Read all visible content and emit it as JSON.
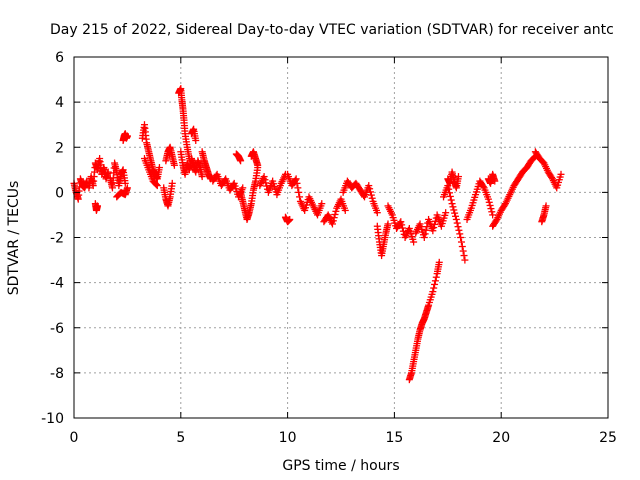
{
  "chart_data": {
    "type": "scatter",
    "title": "Day 215 of 2022, Sidereal Day-to-day VTEC variation (SDTVAR) for receiver antc",
    "xlabel": "GPS time / hours",
    "ylabel": "SDTVAR / TECUs",
    "xlim": [
      0,
      25
    ],
    "ylim": [
      -10,
      6
    ],
    "x_ticks": [
      0,
      5,
      10,
      15,
      20,
      25
    ],
    "y_ticks": [
      -10,
      -8,
      -6,
      -4,
      -2,
      0,
      2,
      4,
      6
    ],
    "x_tick_labels": [
      "0",
      "5",
      "10",
      "15",
      "20",
      "25"
    ],
    "y_tick_labels": [
      "-10",
      "-8",
      "-6",
      "-4",
      "-2",
      "0",
      "2",
      "4",
      "6"
    ],
    "grid": true,
    "marker": "plus",
    "marker_color": "#ff0000",
    "series": [
      {
        "name": "SDTVAR",
        "segments": [
          {
            "x": [
              0.0,
              0.1,
              0.2,
              0.3,
              0.4,
              0.5,
              0.6
            ],
            "y": [
              0.4,
              0.0,
              -0.3,
              0.6,
              0.3,
              0.2,
              0.5
            ]
          },
          {
            "x": [
              0.7,
              0.8,
              0.9,
              1.0,
              1.1,
              1.2,
              1.3,
              1.4,
              1.5,
              1.6
            ],
            "y": [
              0.2,
              0.7,
              0.3,
              1.3,
              1.0,
              1.5,
              0.8,
              1.1,
              0.6,
              0.9
            ]
          },
          {
            "x": [
              1.0,
              1.05,
              1.1
            ],
            "y": [
              -0.5,
              -0.8,
              -0.6
            ]
          },
          {
            "x": [
              1.7,
              1.8,
              1.9,
              2.0,
              2.1,
              2.2,
              2.3,
              2.4
            ],
            "y": [
              0.6,
              0.2,
              1.3,
              0.9,
              0.3,
              0.8,
              1.0,
              0.4
            ]
          },
          {
            "x": [
              2.3,
              2.35,
              2.4,
              2.45,
              2.5
            ],
            "y": [
              2.3,
              2.5,
              2.6,
              2.4,
              2.5
            ]
          },
          {
            "x": [
              2.0,
              2.2,
              2.4,
              2.5
            ],
            "y": [
              -0.2,
              0.0,
              -0.1,
              0.2
            ]
          },
          {
            "x": [
              3.2,
              3.3,
              3.4,
              3.5,
              3.6,
              3.7,
              3.8,
              3.9,
              4.0
            ],
            "y": [
              2.4,
              3.0,
              2.2,
              1.8,
              1.4,
              1.0,
              0.8,
              0.6,
              1.1
            ]
          },
          {
            "x": [
              3.3,
              3.5,
              3.7,
              3.9
            ],
            "y": [
              1.5,
              1.0,
              0.5,
              0.3
            ]
          },
          {
            "x": [
              4.2,
              4.3,
              4.4,
              4.5,
              4.6
            ],
            "y": [
              0.2,
              -0.3,
              -0.6,
              -0.2,
              0.4
            ]
          },
          {
            "x": [
              4.3,
              4.4,
              4.5,
              4.6,
              4.7
            ],
            "y": [
              1.4,
              1.8,
              2.0,
              1.6,
              1.2
            ]
          },
          {
            "x": [
              4.9,
              5.0,
              5.05,
              5.1,
              5.15,
              5.2,
              5.3,
              5.4
            ],
            "y": [
              4.4,
              4.6,
              4.1,
              3.7,
              3.2,
              2.6,
              2.0,
              1.5
            ]
          },
          {
            "x": [
              5.0,
              5.1,
              5.2,
              5.3,
              5.4,
              5.5,
              5.6,
              5.7,
              5.8,
              5.9,
              6.0
            ],
            "y": [
              1.8,
              1.2,
              0.8,
              1.3,
              1.0,
              1.5,
              1.2,
              0.9,
              1.4,
              1.1,
              0.7
            ]
          },
          {
            "x": [
              5.5,
              5.6,
              5.7
            ],
            "y": [
              2.6,
              2.8,
              2.3
            ]
          },
          {
            "x": [
              6.0,
              6.1,
              6.2,
              6.3,
              6.4
            ],
            "y": [
              1.8,
              1.4,
              1.1,
              0.8,
              0.6
            ]
          },
          {
            "x": [
              6.5,
              6.7,
              6.9,
              7.1,
              7.3,
              7.5,
              7.7,
              7.9
            ],
            "y": [
              0.5,
              0.8,
              0.3,
              0.6,
              0.1,
              0.4,
              -0.2,
              0.2
            ]
          },
          {
            "x": [
              7.6,
              7.7,
              7.8
            ],
            "y": [
              1.7,
              1.6,
              1.4
            ]
          },
          {
            "x": [
              7.8,
              7.9,
              8.0,
              8.1,
              8.2,
              8.3,
              8.4,
              8.5,
              8.6
            ],
            "y": [
              0.0,
              -0.4,
              -0.8,
              -1.2,
              -0.9,
              -0.5,
              0.1,
              0.5,
              1.1
            ]
          },
          {
            "x": [
              8.3,
              8.4,
              8.5,
              8.6
            ],
            "y": [
              1.6,
              1.8,
              1.5,
              1.2
            ]
          },
          {
            "x": [
              8.7,
              8.9,
              9.1,
              9.3,
              9.5,
              9.7,
              9.9
            ],
            "y": [
              0.3,
              0.7,
              0.0,
              0.5,
              -0.1,
              0.4,
              0.8
            ]
          },
          {
            "x": [
              9.9,
              10.0,
              10.1
            ],
            "y": [
              -1.1,
              -1.3,
              -1.2
            ]
          },
          {
            "x": [
              10.0,
              10.2,
              10.4,
              10.6,
              10.8,
              11.0,
              11.2,
              11.4,
              11.6
            ],
            "y": [
              0.8,
              0.3,
              0.6,
              -0.4,
              -0.8,
              -0.2,
              -0.6,
              -1.0,
              -0.5
            ]
          },
          {
            "x": [
              11.7,
              11.9,
              12.1,
              12.3,
              12.5,
              12.7
            ],
            "y": [
              -1.3,
              -1.0,
              -1.4,
              -0.7,
              -0.3,
              -0.8
            ]
          },
          {
            "x": [
              12.6,
              12.8,
              13.0,
              13.2,
              13.4,
              13.6,
              13.8,
              14.0,
              14.2
            ],
            "y": [
              0.0,
              0.5,
              0.2,
              0.4,
              0.1,
              -0.2,
              0.3,
              -0.4,
              -0.9
            ]
          },
          {
            "x": [
              14.2,
              14.3,
              14.4,
              14.5,
              14.6,
              14.7
            ],
            "y": [
              -1.5,
              -2.2,
              -2.8,
              -2.3,
              -1.8,
              -1.4
            ]
          },
          {
            "x": [
              14.7,
              14.9,
              15.1,
              15.3,
              15.5,
              15.7,
              15.9
            ],
            "y": [
              -0.6,
              -1.0,
              -1.6,
              -1.3,
              -2.0,
              -1.6,
              -2.2
            ]
          },
          {
            "x": [
              15.7,
              15.8,
              15.9,
              16.0,
              16.1,
              16.2,
              16.3,
              16.4,
              16.5,
              16.6,
              16.8,
              17.0,
              17.1
            ],
            "y": [
              -8.3,
              -8.0,
              -7.5,
              -7.0,
              -6.5,
              -6.1,
              -5.8,
              -5.6,
              -5.3,
              -5.0,
              -4.4,
              -3.6,
              -3.1
            ]
          },
          {
            "x": [
              16.0,
              16.2,
              16.4,
              16.6,
              16.8,
              17.0,
              17.2,
              17.4
            ],
            "y": [
              -1.8,
              -1.4,
              -2.0,
              -1.2,
              -1.7,
              -1.0,
              -1.5,
              -0.9
            ]
          },
          {
            "x": [
              17.3,
              17.5,
              17.7,
              17.9,
              18.1,
              18.3
            ],
            "y": [
              -0.2,
              0.3,
              -0.5,
              -1.2,
              -2.0,
              -3.0
            ]
          },
          {
            "x": [
              17.5,
              17.6,
              17.7,
              17.8,
              17.9,
              18.0
            ],
            "y": [
              0.6,
              0.4,
              0.9,
              0.5,
              0.2,
              0.7
            ]
          },
          {
            "x": [
              18.4,
              18.6,
              18.8,
              19.0,
              19.2,
              19.4,
              19.6
            ],
            "y": [
              -1.2,
              -0.7,
              -0.1,
              0.5,
              0.2,
              -0.3,
              -1.0
            ]
          },
          {
            "x": [
              19.4,
              19.5,
              19.6,
              19.7
            ],
            "y": [
              0.6,
              0.4,
              0.8,
              0.5
            ]
          },
          {
            "x": [
              19.6,
              19.8,
              20.0,
              20.2,
              20.4,
              20.6,
              20.8,
              21.0,
              21.2,
              21.4,
              21.6
            ],
            "y": [
              -1.5,
              -1.2,
              -0.8,
              -0.5,
              -0.1,
              0.3,
              0.6,
              0.9,
              1.1,
              1.4,
              1.6
            ]
          },
          {
            "x": [
              21.6,
              21.8,
              22.0,
              22.2,
              22.4,
              22.6,
              22.8
            ],
            "y": [
              1.8,
              1.5,
              1.3,
              0.9,
              0.6,
              0.2,
              0.8
            ]
          },
          {
            "x": [
              21.9,
              22.0,
              22.1
            ],
            "y": [
              -1.3,
              -1.0,
              -0.6
            ]
          }
        ]
      }
    ]
  }
}
